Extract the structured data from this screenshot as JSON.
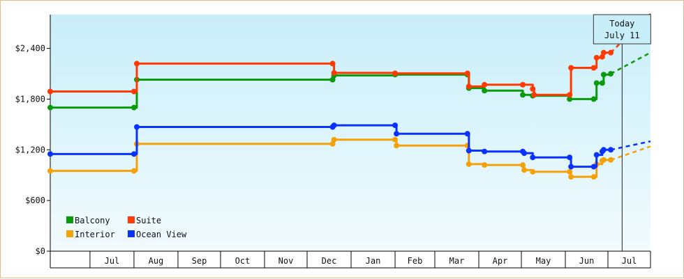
{
  "chart_data": {
    "type": "line",
    "title": "",
    "xlabel": "",
    "ylabel": "",
    "y_ticks": [
      "$0",
      "$600",
      "$1,200",
      "$1,800",
      "$2,400"
    ],
    "y_tick_values": [
      0,
      600,
      1200,
      1800,
      2400
    ],
    "ylim": [
      0,
      2800
    ],
    "x_ticks": [
      "Jul",
      "Aug",
      "Sep",
      "Oct",
      "Nov",
      "Dec",
      "Jan",
      "Feb",
      "Mar",
      "Apr",
      "May",
      "Jun",
      "Jul"
    ],
    "xlim": [
      "2009-06-03",
      "2010-07-31"
    ],
    "grid": false,
    "legend_position": "bottom-left",
    "today": {
      "date": "2010-07-11",
      "label_line1": "Today",
      "label_line2": "July 11"
    },
    "series": [
      {
        "name": "Balcony",
        "color": "#0a9a0a",
        "points": [
          [
            "2009-06-03",
            1700
          ],
          [
            "2009-08-01",
            1700
          ],
          [
            "2009-08-03",
            2030
          ],
          [
            "2009-12-19",
            2030
          ],
          [
            "2009-12-20",
            2080
          ],
          [
            "2010-02-01",
            2090
          ],
          [
            "2010-03-24",
            2090
          ],
          [
            "2010-03-25",
            1930
          ],
          [
            "2010-04-05",
            1900
          ],
          [
            "2010-05-02",
            1850
          ],
          [
            "2010-05-09",
            1840
          ],
          [
            "2010-06-04",
            1800
          ],
          [
            "2010-06-21",
            1800
          ],
          [
            "2010-06-23",
            1990
          ],
          [
            "2010-06-27",
            1990
          ],
          [
            "2010-06-28",
            2090
          ],
          [
            "2010-07-03",
            2100
          ]
        ],
        "projection": [
          [
            "2010-07-11",
            2100
          ],
          [
            "2010-07-31",
            2350
          ]
        ]
      },
      {
        "name": "Suite",
        "color": "#ff3a00",
        "points": [
          [
            "2009-06-03",
            1890
          ],
          [
            "2009-08-01",
            1890
          ],
          [
            "2009-08-03",
            2220
          ],
          [
            "2009-12-19",
            2220
          ],
          [
            "2009-12-20",
            2110
          ],
          [
            "2010-02-01",
            2105
          ],
          [
            "2010-03-24",
            2105
          ],
          [
            "2010-03-25",
            1950
          ],
          [
            "2010-04-05",
            1970
          ],
          [
            "2010-05-02",
            1970
          ],
          [
            "2010-05-09",
            1920
          ],
          [
            "2010-05-10",
            1850
          ],
          [
            "2010-06-04",
            1850
          ],
          [
            "2010-06-05",
            2170
          ],
          [
            "2010-06-21",
            2170
          ],
          [
            "2010-06-23",
            2290
          ],
          [
            "2010-06-27",
            2300
          ],
          [
            "2010-06-28",
            2350
          ],
          [
            "2010-07-03",
            2350
          ]
        ],
        "projection": [
          [
            "2010-07-11",
            2350
          ],
          [
            "2010-07-31",
            2810
          ]
        ]
      },
      {
        "name": "Interior",
        "color": "#f5a20a",
        "points": [
          [
            "2009-06-03",
            950
          ],
          [
            "2009-08-01",
            950
          ],
          [
            "2009-08-03",
            1270
          ],
          [
            "2009-12-19",
            1270
          ],
          [
            "2009-12-20",
            1320
          ],
          [
            "2010-02-01",
            1320
          ],
          [
            "2010-02-02",
            1250
          ],
          [
            "2010-03-24",
            1250
          ],
          [
            "2010-03-25",
            1030
          ],
          [
            "2010-04-05",
            1020
          ],
          [
            "2010-05-02",
            1020
          ],
          [
            "2010-05-03",
            960
          ],
          [
            "2010-05-09",
            940
          ],
          [
            "2010-06-04",
            940
          ],
          [
            "2010-06-05",
            880
          ],
          [
            "2010-06-21",
            880
          ],
          [
            "2010-06-23",
            1030
          ],
          [
            "2010-06-27",
            1070
          ],
          [
            "2010-06-28",
            1080
          ],
          [
            "2010-07-03",
            1080
          ]
        ],
        "projection": [
          [
            "2010-07-11",
            1080
          ],
          [
            "2010-07-31",
            1240
          ]
        ]
      },
      {
        "name": "Ocean View",
        "color": "#0a32ff",
        "points": [
          [
            "2009-06-03",
            1150
          ],
          [
            "2009-08-01",
            1150
          ],
          [
            "2009-08-03",
            1470
          ],
          [
            "2009-12-19",
            1470
          ],
          [
            "2009-12-20",
            1490
          ],
          [
            "2010-02-01",
            1490
          ],
          [
            "2010-02-02",
            1390
          ],
          [
            "2010-03-24",
            1390
          ],
          [
            "2010-03-25",
            1190
          ],
          [
            "2010-04-05",
            1180
          ],
          [
            "2010-05-02",
            1180
          ],
          [
            "2010-05-03",
            1160
          ],
          [
            "2010-05-09",
            1110
          ],
          [
            "2010-06-04",
            1110
          ],
          [
            "2010-06-05",
            1000
          ],
          [
            "2010-06-21",
            1000
          ],
          [
            "2010-06-23",
            1140
          ],
          [
            "2010-06-27",
            1180
          ],
          [
            "2010-06-28",
            1200
          ],
          [
            "2010-07-03",
            1200
          ]
        ],
        "projection": [
          [
            "2010-07-11",
            1200
          ],
          [
            "2010-07-31",
            1300
          ]
        ]
      }
    ]
  }
}
